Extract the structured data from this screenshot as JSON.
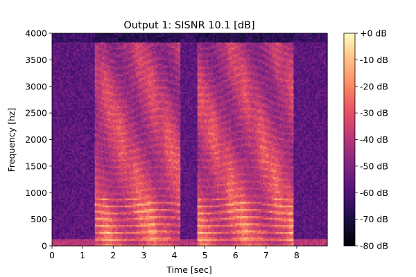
{
  "chart_data": {
    "type": "heatmap",
    "title": "Output 1: SISNR 10.1 [dB]",
    "xlabel": "Time [sec]",
    "ylabel": "Frequency [hz]",
    "xlim": [
      0,
      9
    ],
    "ylim": [
      0,
      4000
    ],
    "x_ticks": [
      0,
      1,
      2,
      3,
      4,
      5,
      6,
      7,
      8
    ],
    "y_ticks": [
      0,
      500,
      1000,
      1500,
      2000,
      2500,
      3000,
      3500,
      4000
    ],
    "colorbar": {
      "range_db": [
        -80,
        0
      ],
      "ticks": [
        0,
        -10,
        -20,
        -30,
        -40,
        -50,
        -60,
        -70,
        -80
      ],
      "tick_labels": [
        "+0 dB",
        "-10 dB",
        "-20 dB",
        "-30 dB",
        "-40 dB",
        "-50 dB",
        "-60 dB",
        "-70 dB",
        "-80 dB"
      ],
      "colormap": "magma"
    },
    "speech_segments_sec": [
      [
        1.4,
        3.5
      ],
      [
        3.5,
        4.2
      ],
      [
        4.75,
        7.9
      ]
    ],
    "silence_segments_sec": [
      [
        0,
        1.4
      ],
      [
        4.2,
        4.75
      ],
      [
        7.9,
        9
      ]
    ],
    "harmonic_spacing_hz": 130,
    "lowpass_edge_hz": 3850
  }
}
